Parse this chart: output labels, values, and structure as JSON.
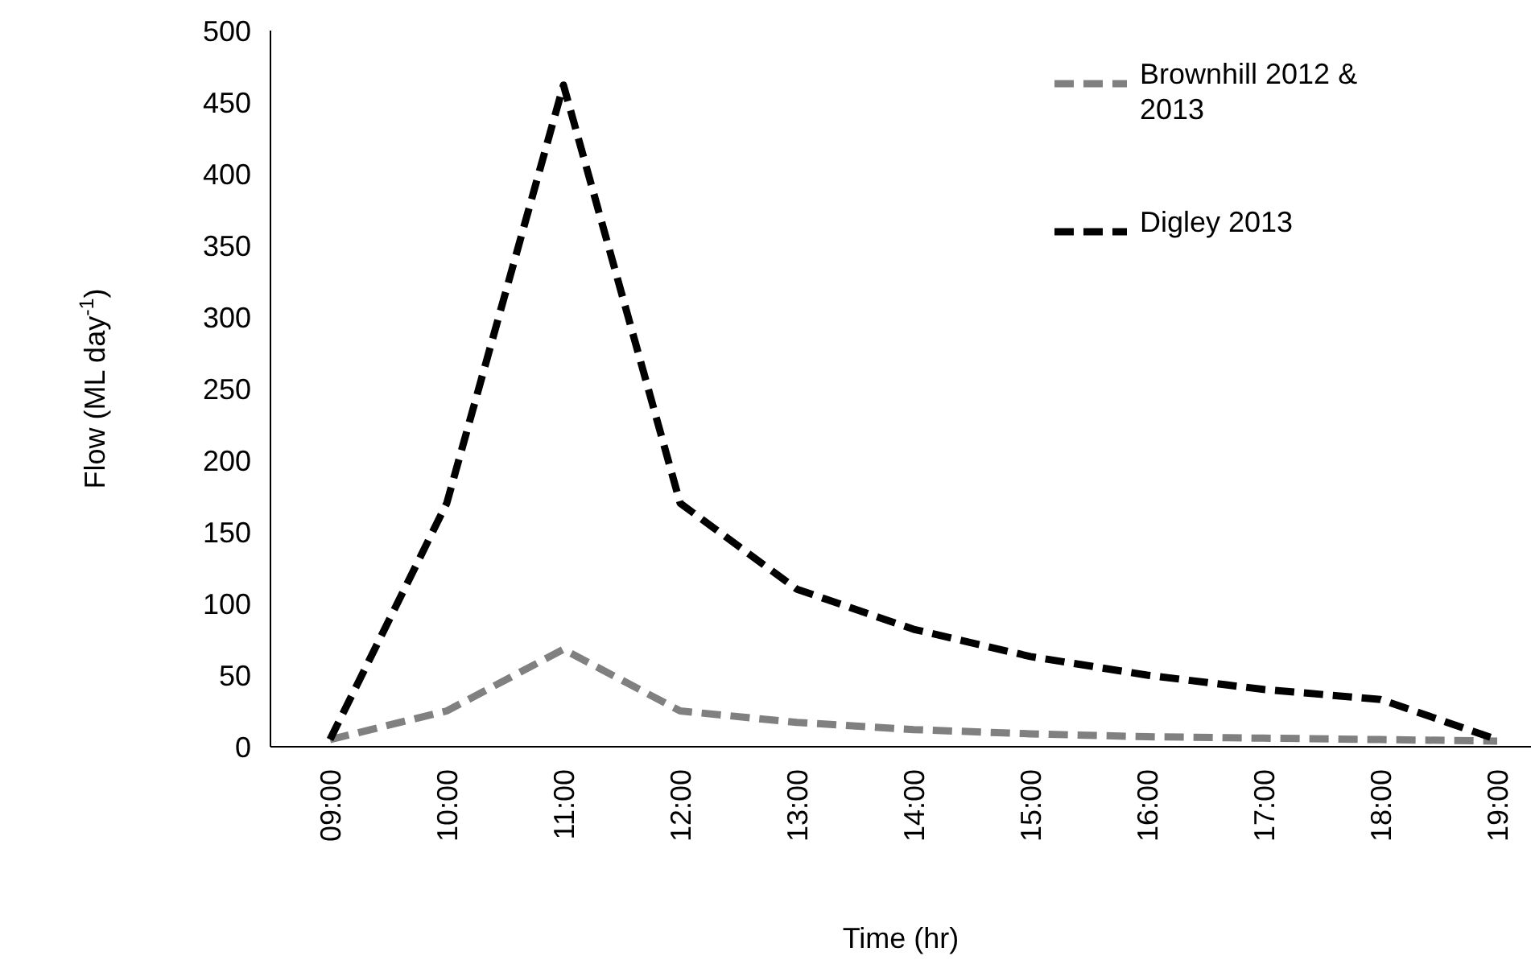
{
  "chart_data": {
    "type": "line",
    "xlabel": "Time (hr)",
    "ylabel": "Flow (ML day$^{-1}$)",
    "categories": [
      "09:00",
      "10:00",
      "11:00",
      "12:00",
      "13:00",
      "14:00",
      "15:00",
      "16:00",
      "17:00",
      "18:00",
      "19:00"
    ],
    "series": [
      {
        "name": "Brownhill 2012 & 2013",
        "color": "#808080",
        "values": [
          5,
          25,
          68,
          25,
          17,
          12,
          9,
          7,
          6,
          5,
          4
        ]
      },
      {
        "name": "Digley 2013",
        "color": "#000000",
        "values": [
          5,
          170,
          462,
          170,
          110,
          82,
          63,
          50,
          40,
          33,
          5
        ]
      }
    ],
    "ylim": [
      0,
      500
    ],
    "yticks": [
      0,
      50,
      100,
      150,
      200,
      250,
      300,
      350,
      400,
      450,
      500
    ],
    "grid": false,
    "legend": "top right",
    "marker": "none",
    "line_style": "dashed"
  }
}
